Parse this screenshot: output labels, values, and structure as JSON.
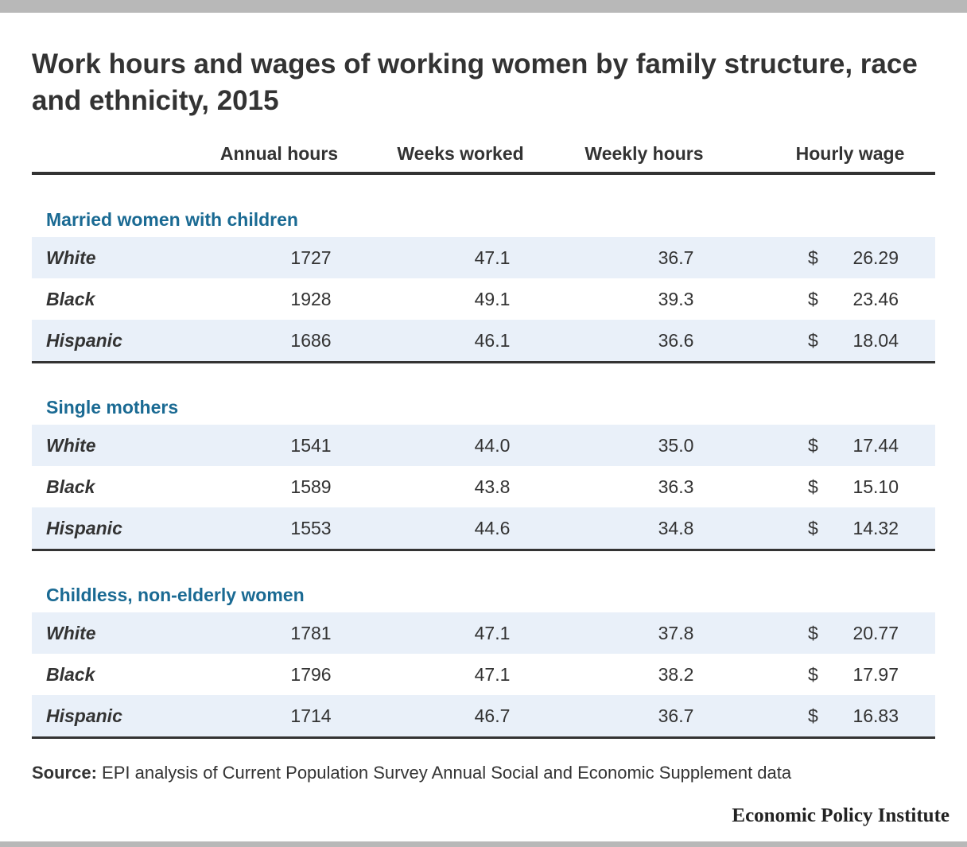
{
  "title": "Work hours and wages of working women by family structure, race and ethnicity, 2015",
  "columns": [
    "Annual hours",
    "Weeks worked",
    "Weekly hours",
    "Hourly wage"
  ],
  "currency_symbol": "$",
  "groups": [
    {
      "name": "Married women with children",
      "rows": [
        {
          "label": "White",
          "annual_hours": "1727",
          "weeks_worked": "47.1",
          "weekly_hours": "36.7",
          "hourly_wage": "26.29"
        },
        {
          "label": "Black",
          "annual_hours": "1928",
          "weeks_worked": "49.1",
          "weekly_hours": "39.3",
          "hourly_wage": "23.46"
        },
        {
          "label": "Hispanic",
          "annual_hours": "1686",
          "weeks_worked": "46.1",
          "weekly_hours": "36.6",
          "hourly_wage": "18.04"
        }
      ]
    },
    {
      "name": "Single mothers",
      "rows": [
        {
          "label": "White",
          "annual_hours": "1541",
          "weeks_worked": "44.0",
          "weekly_hours": "35.0",
          "hourly_wage": "17.44"
        },
        {
          "label": "Black",
          "annual_hours": "1589",
          "weeks_worked": "43.8",
          "weekly_hours": "36.3",
          "hourly_wage": "15.10"
        },
        {
          "label": "Hispanic",
          "annual_hours": "1553",
          "weeks_worked": "44.6",
          "weekly_hours": "34.8",
          "hourly_wage": "14.32"
        }
      ]
    },
    {
      "name": "Childless, non-elderly women",
      "rows": [
        {
          "label": "White",
          "annual_hours": "1781",
          "weeks_worked": "47.1",
          "weekly_hours": "37.8",
          "hourly_wage": "20.77"
        },
        {
          "label": "Black",
          "annual_hours": "1796",
          "weeks_worked": "47.1",
          "weekly_hours": "38.2",
          "hourly_wage": "17.97"
        },
        {
          "label": "Hispanic",
          "annual_hours": "1714",
          "weeks_worked": "46.7",
          "weekly_hours": "36.7",
          "hourly_wage": "16.83"
        }
      ]
    }
  ],
  "source": {
    "label": "Source:",
    "text": "EPI analysis of Current Population Survey Annual Social and Economic Supplement data"
  },
  "logo": "Economic Policy Institute",
  "colors": {
    "accent": "#1a6a93",
    "row_shade": "#e9f0f9",
    "text": "#333333",
    "frame_bar": "#b8b8b8"
  }
}
